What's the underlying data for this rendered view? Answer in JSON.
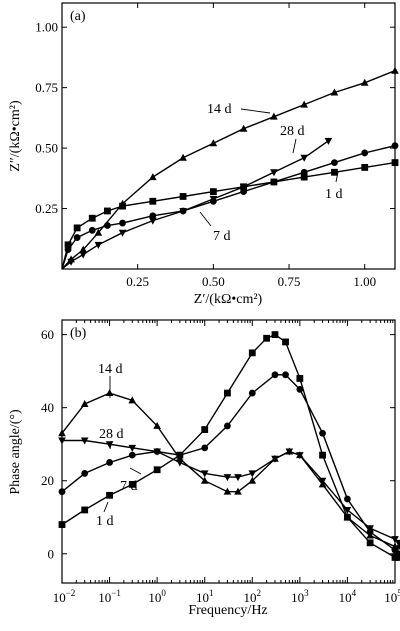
{
  "chart_data": [
    {
      "type": "line",
      "panel": "(a)",
      "xlabel": "Z′/(kΩ•cm²)",
      "ylabel": "Z″/(kΩ•cm²)",
      "xlim": [
        0,
        1.1
      ],
      "ylim": [
        0,
        1.1
      ],
      "xticks": [
        0.25,
        0.5,
        0.75,
        1.0
      ],
      "xtick_labels": [
        "0.25",
        "0.50",
        "0.75",
        "1.00"
      ],
      "yticks": [
        0.25,
        0.5,
        0.75,
        1.0
      ],
      "ytick_labels": [
        "0.25",
        "0.50",
        "0.75",
        "1.00"
      ],
      "grid": false,
      "series": [
        {
          "name": "1 d",
          "marker": "square",
          "x": [
            0.0,
            0.02,
            0.05,
            0.1,
            0.15,
            0.2,
            0.3,
            0.4,
            0.5,
            0.6,
            0.7,
            0.8,
            0.9,
            1.0,
            1.1
          ],
          "y": [
            0.0,
            0.1,
            0.17,
            0.21,
            0.24,
            0.26,
            0.28,
            0.3,
            0.32,
            0.34,
            0.36,
            0.38,
            0.4,
            0.42,
            0.44
          ]
        },
        {
          "name": "7 d",
          "marker": "circle",
          "x": [
            0.0,
            0.02,
            0.05,
            0.1,
            0.15,
            0.2,
            0.3,
            0.4,
            0.5,
            0.6,
            0.7,
            0.8,
            0.9,
            1.0,
            1.1
          ],
          "y": [
            0.0,
            0.08,
            0.13,
            0.16,
            0.18,
            0.19,
            0.22,
            0.24,
            0.28,
            0.32,
            0.36,
            0.4,
            0.44,
            0.48,
            0.51
          ]
        },
        {
          "name": "14 d",
          "marker": "triangle-up",
          "x": [
            0.0,
            0.03,
            0.07,
            0.12,
            0.2,
            0.3,
            0.4,
            0.5,
            0.6,
            0.7,
            0.8,
            0.9,
            1.0,
            1.1
          ],
          "y": [
            0.0,
            0.04,
            0.08,
            0.15,
            0.27,
            0.38,
            0.46,
            0.52,
            0.58,
            0.63,
            0.68,
            0.73,
            0.77,
            0.82
          ]
        },
        {
          "name": "28 d",
          "marker": "triangle-down",
          "x": [
            0.0,
            0.03,
            0.07,
            0.12,
            0.2,
            0.3,
            0.4,
            0.5,
            0.6,
            0.7,
            0.8,
            0.88
          ],
          "y": [
            0.0,
            0.03,
            0.06,
            0.1,
            0.15,
            0.2,
            0.24,
            0.29,
            0.34,
            0.4,
            0.46,
            0.53
          ]
        }
      ],
      "annotations": [
        "14 d",
        "28 d",
        "1 d",
        "7 d"
      ]
    },
    {
      "type": "line",
      "panel": "(b)",
      "xlabel": "Frequency/Hz",
      "ylabel": "Phase angle/(°)",
      "xscale": "log",
      "xlim": [
        0.01,
        100000
      ],
      "ylim": [
        -8,
        64
      ],
      "xticks": [
        0.01,
        0.1,
        1,
        10,
        100,
        1000,
        10000,
        100000
      ],
      "xtick_bases": [
        "10",
        "10",
        "10",
        "10",
        "10",
        "10",
        "10",
        "10"
      ],
      "xtick_exps": [
        "−2",
        "−1",
        "0",
        "1",
        "2",
        "3",
        "4",
        "5"
      ],
      "yticks": [
        0,
        20,
        40,
        60
      ],
      "ytick_labels": [
        "0",
        "20",
        "40",
        "60"
      ],
      "grid": false,
      "series": [
        {
          "name": "1 d",
          "marker": "square",
          "x": [
            0.01,
            0.03,
            0.1,
            0.3,
            1,
            3,
            10,
            30,
            100,
            200,
            300,
            500,
            1000,
            3000,
            10000,
            30000,
            100000,
            120000
          ],
          "y": [
            8,
            12,
            16,
            19,
            23,
            27,
            34,
            44,
            55,
            59,
            60,
            58,
            48,
            27,
            10,
            3,
            -1,
            -1
          ]
        },
        {
          "name": "7 d",
          "marker": "circle",
          "x": [
            0.01,
            0.03,
            0.1,
            0.3,
            1,
            3,
            10,
            30,
            100,
            300,
            500,
            1000,
            3000,
            10000,
            30000,
            100000,
            120000
          ],
          "y": [
            17,
            22,
            25,
            27,
            28,
            27,
            29,
            35,
            44,
            49,
            49,
            45,
            33,
            15,
            6,
            1,
            0
          ]
        },
        {
          "name": "14 d",
          "marker": "triangle-up",
          "x": [
            0.01,
            0.03,
            0.1,
            0.3,
            1,
            3,
            10,
            30,
            50,
            100,
            300,
            600,
            1000,
            3000,
            10000,
            30000,
            100000,
            120000
          ],
          "y": [
            33,
            41,
            44,
            42,
            35,
            26,
            20,
            17,
            17,
            20,
            26,
            28,
            27,
            19,
            10,
            5,
            2,
            2
          ]
        },
        {
          "name": "28 d",
          "marker": "triangle-down",
          "x": [
            0.01,
            0.03,
            0.1,
            0.3,
            1,
            3,
            10,
            30,
            50,
            100,
            300,
            600,
            1000,
            3000,
            10000,
            30000,
            100000,
            120000
          ],
          "y": [
            31,
            31,
            30,
            29,
            28,
            25,
            22,
            21,
            21,
            22,
            26,
            28,
            27,
            20,
            12,
            7,
            4,
            3
          ]
        }
      ],
      "annotations": [
        "14 d",
        "28 d",
        "7 d",
        "1 d"
      ]
    }
  ]
}
